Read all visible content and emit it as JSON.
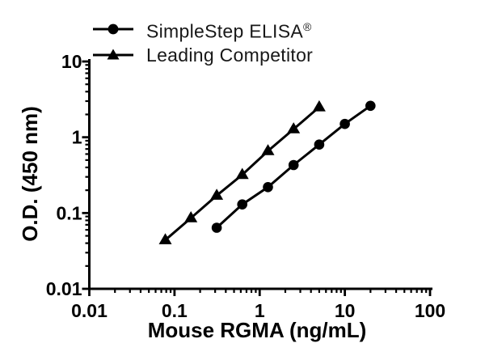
{
  "figure": {
    "background": "#ffffff",
    "ink_color": "#000000"
  },
  "legend": {
    "items": [
      {
        "label": "SimpleStep ELISA",
        "superscript": "®",
        "marker": "circle-line"
      },
      {
        "label": "Leading Competitor",
        "superscript": "",
        "marker": "triangle-line"
      }
    ]
  },
  "chart_data": {
    "type": "line",
    "title": "",
    "xlabel": "Mouse RGMA (ng/mL)",
    "ylabel": "O.D. (450 nm)",
    "x_scale": "log",
    "y_scale": "log",
    "xlim": [
      0.01,
      100
    ],
    "ylim": [
      0.01,
      10
    ],
    "x_tick_labels": [
      "0.01",
      "0.1",
      "1",
      "10",
      "100"
    ],
    "y_tick_labels": [
      "0.01",
      "0.1",
      "1",
      "10"
    ],
    "grid": false,
    "legend_position": "top-left",
    "series": [
      {
        "name": "SimpleStep ELISA",
        "marker": "circle",
        "color": "#000000",
        "x": [
          0.313,
          0.625,
          1.25,
          2.5,
          5,
          10,
          20
        ],
        "y": [
          0.064,
          0.13,
          0.22,
          0.43,
          0.8,
          1.5,
          2.6
        ]
      },
      {
        "name": "Leading Competitor",
        "marker": "triangle",
        "color": "#000000",
        "x": [
          0.078,
          0.156,
          0.313,
          0.625,
          1.25,
          2.5,
          5
        ],
        "y": [
          0.044,
          0.086,
          0.17,
          0.32,
          0.66,
          1.28,
          2.5
        ]
      }
    ]
  }
}
